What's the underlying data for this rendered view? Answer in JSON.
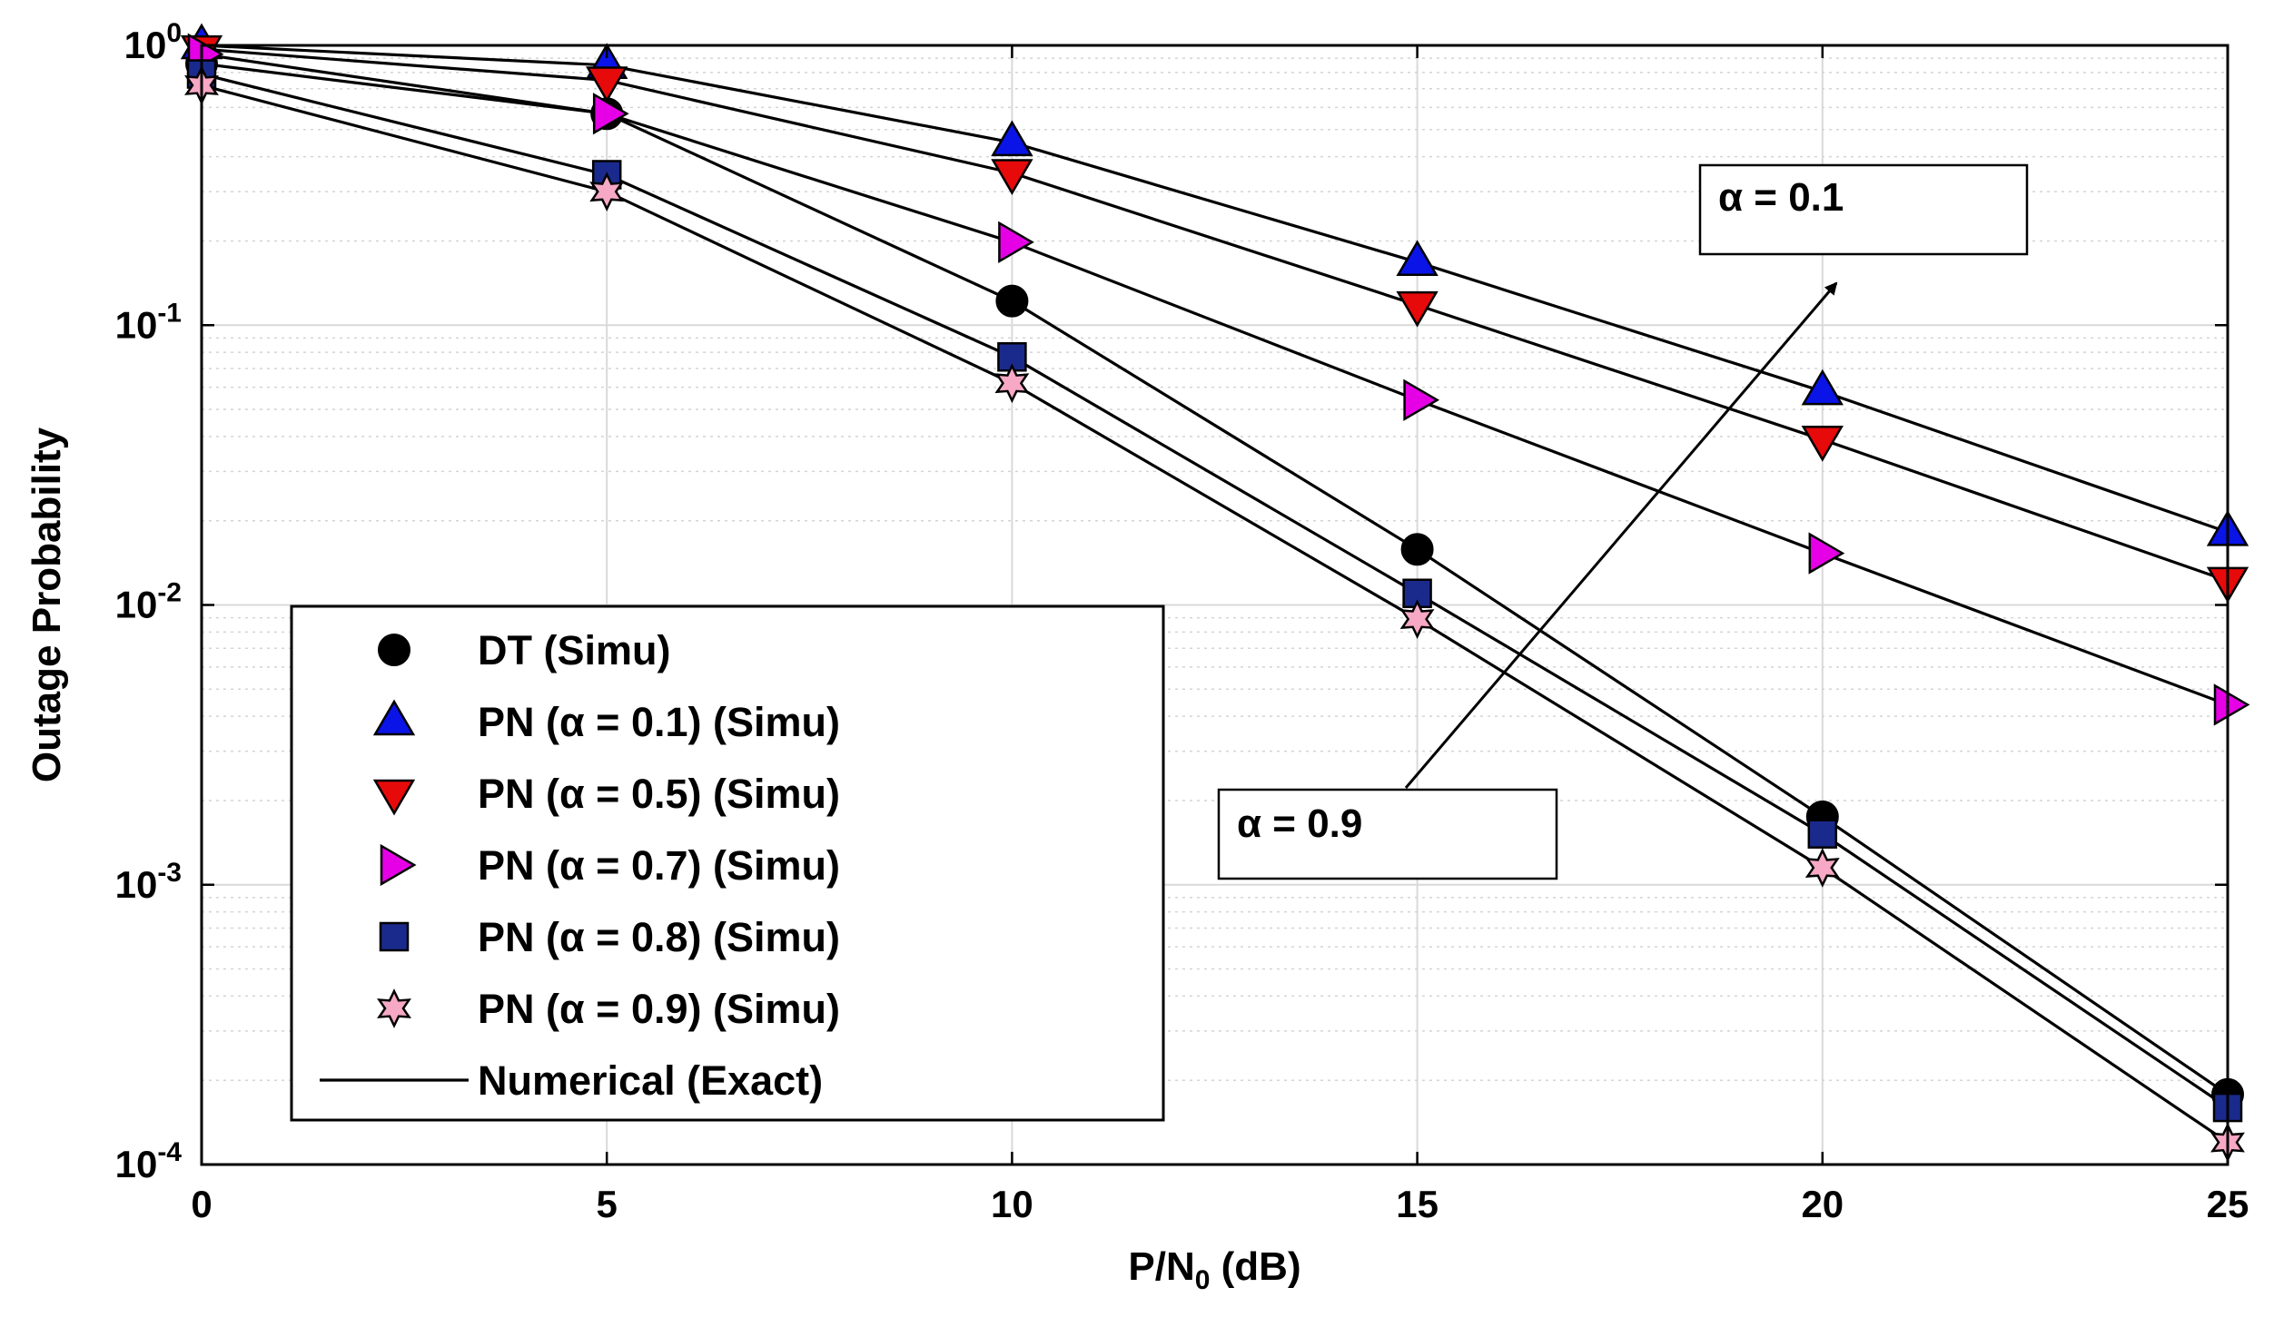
{
  "chart_data": {
    "type": "line",
    "title": "",
    "xlabel": {
      "main": "P/N",
      "sub": "0",
      "tail": " (dB)"
    },
    "ylabel": "Outage Probability",
    "xlim": [
      0,
      25
    ],
    "ylim": [
      0.0001,
      1
    ],
    "yscale": "log",
    "grid": true,
    "legend_position": "bottom-left",
    "x_ticks": [
      "0",
      "5",
      "10",
      "15",
      "20",
      "25"
    ],
    "y_ticks": [
      {
        "base": "10",
        "exp": "0"
      },
      {
        "base": "10",
        "exp": "-1"
      },
      {
        "base": "10",
        "exp": "-2"
      },
      {
        "base": "10",
        "exp": "-3"
      },
      {
        "base": "10",
        "exp": "-4"
      }
    ],
    "x": [
      0,
      5,
      10,
      15,
      20,
      25
    ],
    "series": [
      {
        "name": "DT (Simu)",
        "marker": "circle",
        "color": "#000000",
        "values": [
          0.86,
          0.57,
          0.122,
          0.0158,
          0.00175,
          0.000178
        ]
      },
      {
        "name": "PN (α = 0.1) (Simu)",
        "marker": "triangle-up",
        "color": "#0a14e6",
        "values": [
          1.0,
          0.85,
          0.45,
          0.168,
          0.058,
          0.0182
        ]
      },
      {
        "name": "PN (α = 0.5) (Simu)",
        "marker": "triangle-down",
        "color": "#e60a0a",
        "values": [
          0.97,
          0.75,
          0.35,
          0.118,
          0.039,
          0.0122
        ]
      },
      {
        "name": "PN (α = 0.7) (Simu)",
        "marker": "triangle-right",
        "color": "#e600e6",
        "values": [
          0.93,
          0.57,
          0.198,
          0.054,
          0.0153,
          0.0044
        ]
      },
      {
        "name": "PN (α = 0.8) (Simu)",
        "marker": "square",
        "color": "#1a2a8c",
        "values": [
          0.79,
          0.345,
          0.077,
          0.011,
          0.00152,
          0.00016
        ]
      },
      {
        "name": "PN (α = 0.9) (Simu)",
        "marker": "hexagram",
        "color": "#f7a8c4",
        "values": [
          0.72,
          0.3,
          0.062,
          0.0089,
          0.00115,
          0.00012
        ]
      }
    ],
    "exact_line_label": "Numerical (Exact)",
    "annotations": {
      "top": "α = 0.1",
      "bottom": "α = 0.9"
    }
  }
}
